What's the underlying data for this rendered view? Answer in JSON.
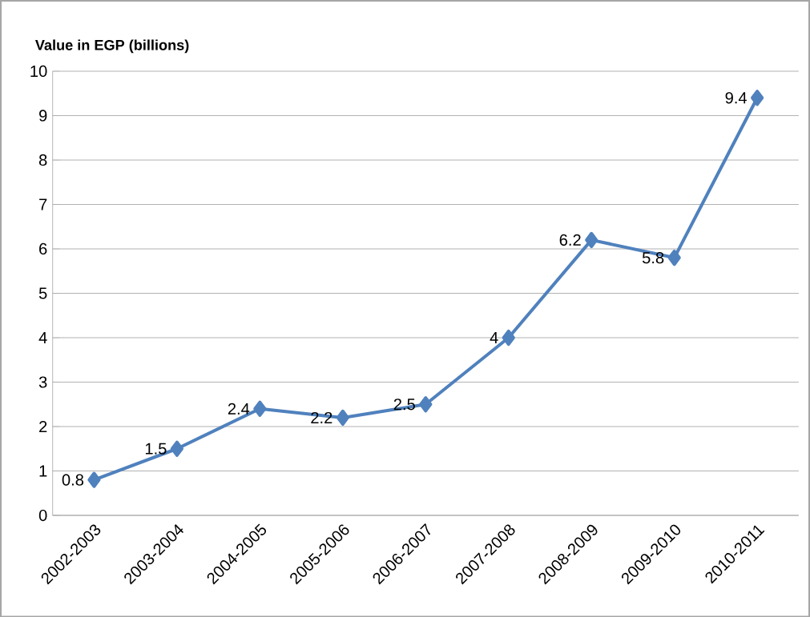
{
  "chart_data": {
    "type": "line",
    "ylabel": "Value in EGP (billions)",
    "categories": [
      "2002-2003",
      "2003-2004",
      "2004-2005",
      "2005-2006",
      "2006-2007",
      "2007-2008",
      "2008-2009",
      "2009-2010",
      "2010-2011"
    ],
    "values": [
      0.8,
      1.5,
      2.4,
      2.2,
      2.5,
      4,
      6.2,
      5.8,
      9.4
    ],
    "color": "#4f81bd",
    "ylim": [
      0,
      10
    ],
    "yticks": [
      0,
      1,
      2,
      3,
      4,
      5,
      6,
      7,
      8,
      9,
      10
    ],
    "grid": "y",
    "marker": "diamond",
    "line_style": "solid",
    "data_labels": true
  }
}
